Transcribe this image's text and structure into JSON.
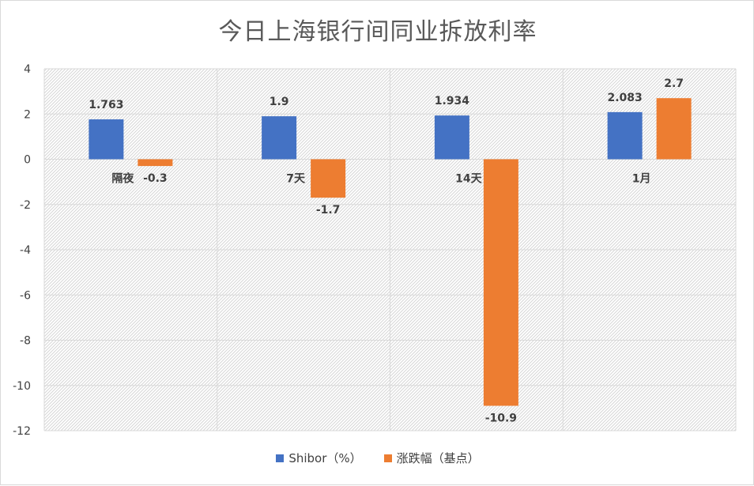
{
  "chart_data": {
    "type": "bar",
    "title": "今日上海银行间同业拆放利率",
    "categories": [
      "隔夜",
      "7天",
      "14天",
      "1月"
    ],
    "series": [
      {
        "name": "Shibor（%）",
        "color": "#4472c4",
        "values": [
          1.763,
          1.9,
          1.934,
          2.083
        ],
        "labels": [
          "1.763",
          "1.9",
          "1.934",
          "2.083"
        ]
      },
      {
        "name": "涨跌幅（基点）",
        "color": "#ed7d31",
        "values": [
          -0.3,
          -1.7,
          -10.9,
          2.7
        ],
        "labels": [
          "-0.3",
          "-1.7",
          "-10.9",
          "2.7"
        ]
      }
    ],
    "ylim": [
      -12,
      4
    ],
    "yticks": [
      4,
      2,
      0,
      -2,
      -4,
      -6,
      -8,
      -10,
      -12
    ],
    "grid": true,
    "legend_position": "bottom"
  }
}
